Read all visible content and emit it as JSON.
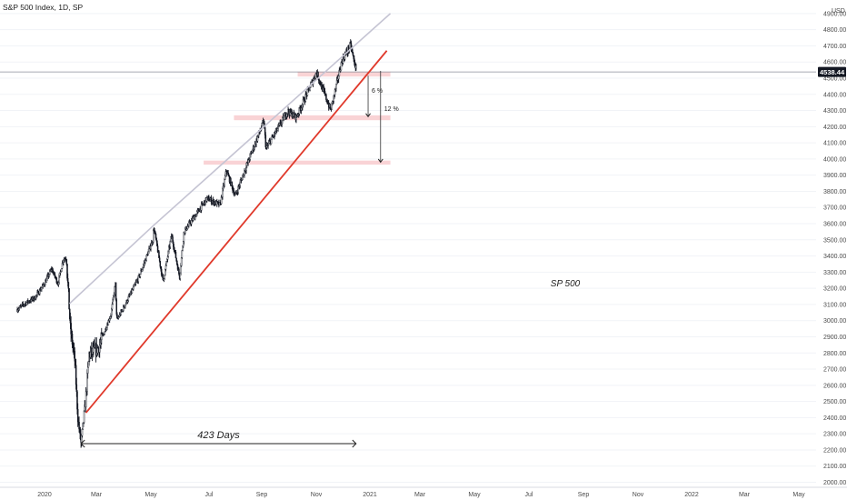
{
  "header": {
    "title": "S&P 500 Index, 1D, SP"
  },
  "currency": "USD",
  "price_badge": "4538.44",
  "chart_data": {
    "type": "candlestick",
    "title": "S&P 500 Index, 1D, SP",
    "y_axis_unit": "USD",
    "ylim": [
      1950,
      4950
    ],
    "y_ticks": [
      "2000.00",
      "2100.00",
      "2200.00",
      "2300.00",
      "2400.00",
      "2500.00",
      "2600.00",
      "2700.00",
      "2800.00",
      "2900.00",
      "3000.00",
      "3100.00",
      "3200.00",
      "3300.00",
      "3400.00",
      "3500.00",
      "3600.00",
      "3700.00",
      "3800.00",
      "3900.00",
      "4000.00",
      "4100.00",
      "4200.00",
      "4300.00",
      "4400.00",
      "4500.00",
      "4600.00",
      "4700.00",
      "4800.00",
      "4900.00"
    ],
    "x_ticks": [
      "2020",
      "Mar",
      "May",
      "Jul",
      "Sep",
      "Nov",
      "2021",
      "Mar",
      "May",
      "Jul",
      "Sep",
      "Nov",
      "2022",
      "Mar",
      "May"
    ],
    "last_price": 4538.44,
    "price_path": [
      [
        "2019-11-01",
        3070
      ],
      [
        "2019-11-20",
        3110
      ],
      [
        "2019-12-10",
        3140
      ],
      [
        "2020-01-01",
        3230
      ],
      [
        "2020-01-17",
        3320
      ],
      [
        "2020-01-31",
        3230
      ],
      [
        "2020-02-12",
        3380
      ],
      [
        "2020-02-19",
        3390
      ],
      [
        "2020-02-28",
        2950
      ],
      [
        "2020-03-09",
        2750
      ],
      [
        "2020-03-16",
        2390
      ],
      [
        "2020-03-23",
        2237
      ],
      [
        "2020-04-01",
        2470
      ],
      [
        "2020-04-10",
        2790
      ],
      [
        "2020-05-01",
        2830
      ],
      [
        "2020-05-29",
        3040
      ],
      [
        "2020-06-08",
        3230
      ],
      [
        "2020-06-11",
        3000
      ],
      [
        "2020-06-30",
        3100
      ],
      [
        "2020-07-31",
        3270
      ],
      [
        "2020-08-31",
        3500
      ],
      [
        "2020-09-02",
        3580
      ],
      [
        "2020-09-23",
        3240
      ],
      [
        "2020-10-12",
        3530
      ],
      [
        "2020-10-30",
        3270
      ],
      [
        "2020-11-09",
        3550
      ],
      [
        "2020-12-31",
        3756
      ],
      [
        "2021-01-29",
        3714
      ],
      [
        "2021-02-12",
        3930
      ],
      [
        "2021-03-04",
        3770
      ],
      [
        "2021-03-31",
        3973
      ],
      [
        "2021-05-07",
        4232
      ],
      [
        "2021-05-12",
        4063
      ],
      [
        "2021-06-30",
        4297
      ],
      [
        "2021-07-19",
        4258
      ],
      [
        "2021-08-31",
        4522
      ],
      [
        "2021-09-02",
        4537
      ],
      [
        "2021-10-04",
        4300
      ],
      [
        "2021-10-29",
        4605
      ],
      [
        "2021-11-18",
        4705
      ],
      [
        "2021-11-26",
        4594
      ],
      [
        "2021-11-30",
        4567
      ],
      [
        "2021-12-01",
        4538
      ]
    ],
    "annotations": {
      "days_label": "423 Days",
      "days_span": [
        "2020-03-23",
        "2021-11-30"
      ],
      "chart_label": "SP 500",
      "pct_6": "6 %",
      "pct_12": "12 %",
      "upper_channel": [
        [
          "2020-02-26",
          3105
        ],
        [
          "2020-09-02",
          3590
        ],
        [
          "2022-02-15",
          4900
        ]
      ],
      "lower_trend": [
        [
          "2020-04-03",
          2430
        ],
        [
          "2022-02-07",
          4670
        ]
      ],
      "support_zones": [
        {
          "date_from": "2021-07-22",
          "date_to": "2022-02-15",
          "low": 4510,
          "high": 4540
        },
        {
          "date_from": "2021-03-01",
          "date_to": "2022-02-15",
          "low": 4240,
          "high": 4270
        },
        {
          "date_from": "2020-12-23",
          "date_to": "2022-02-15",
          "low": 3965,
          "high": 3990
        }
      ],
      "pct_6_arrow": {
        "date": "2021-12-27",
        "from": 4515,
        "to": 4262
      },
      "pct_12_arrow": {
        "date": "2022-01-24",
        "from": 4545,
        "to": 3980
      }
    },
    "colors": {
      "up_line": "#c5c4d3",
      "trend_line": "#e0392b",
      "zone": "rgba(240,150,155,0.42)",
      "candle": "#131722",
      "badge_bg": "#131722"
    }
  }
}
